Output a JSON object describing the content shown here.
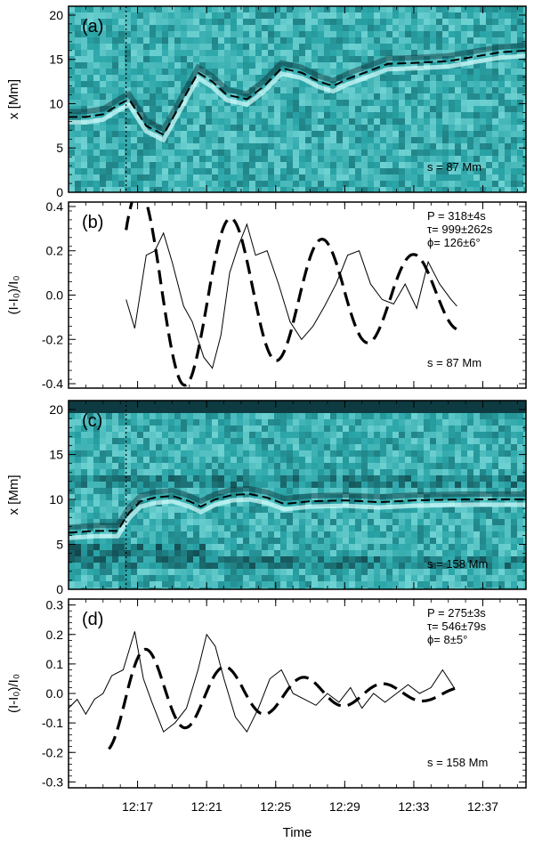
{
  "figure": {
    "xlabel": "Time",
    "xticks": [
      "12:17",
      "12:21",
      "12:25",
      "12:29",
      "12:33",
      "12:37"
    ]
  },
  "chart_data": [
    {
      "type": "heatmap",
      "panel_label": "(a)",
      "ylabel": "x [Mm]",
      "yticks": [
        "0",
        "5",
        "10",
        "15",
        "20"
      ],
      "ylim": [
        0,
        21
      ],
      "annotation": "s = 87 Mm",
      "colormap": [
        "#0a2f35",
        "#2aa5a8",
        "#9ef0ef"
      ],
      "vline_time": "12:16:20",
      "tracked_path": {
        "t": [
          "12:13:00",
          "12:14:00",
          "12:15:00",
          "12:16:00",
          "12:16:30",
          "12:17:30",
          "12:18:30",
          "12:19:30",
          "12:20:30",
          "12:21:20",
          "12:22:10",
          "12:23:20",
          "12:24:20",
          "12:25:20",
          "12:26:30",
          "12:27:30",
          "12:28:20",
          "12:29:10",
          "12:30:10",
          "12:31:30",
          "12:33:00",
          "12:35:00",
          "12:36:30",
          "12:38:00",
          "12:39:30"
        ],
        "x": [
          8.5,
          8.5,
          8.8,
          10,
          10.5,
          7.5,
          6.5,
          10,
          13.5,
          12.5,
          11,
          10.5,
          12,
          14,
          13.5,
          12.5,
          12,
          12.8,
          13.5,
          14.5,
          14.6,
          14.8,
          15.3,
          15.8,
          16
        ]
      }
    },
    {
      "type": "line",
      "panel_label": "(b)",
      "ylabel": "(I-I₀)/I₀",
      "yticks": [
        "-0.4",
        "-0.2",
        "0.0",
        "0.2",
        "0.4"
      ],
      "ylim": [
        -0.42,
        0.42
      ],
      "annotation": "s = 87 Mm",
      "fit_params": [
        "P = 318±4s",
        "τ= 999±262s",
        "ϕ= 126±6°"
      ],
      "fit": {
        "t_start": "12:16:20",
        "t_end": "12:35:30",
        "period_s": 318,
        "damping_s": 999,
        "phase_deg": 126,
        "amplitude": 0.5
      },
      "series": [
        {
          "t": [
            "12:16:20",
            "12:16:50",
            "12:17:30",
            "12:18:00",
            "12:18:30",
            "12:19:00",
            "12:19:40",
            "12:20:10",
            "12:20:50",
            "12:21:20",
            "12:21:50",
            "12:22:20",
            "12:22:50",
            "12:23:20",
            "12:23:50",
            "12:24:30",
            "12:25:10",
            "12:25:50",
            "12:26:30",
            "12:27:10",
            "12:27:50",
            "12:28:30",
            "12:29:10",
            "12:29:50",
            "12:30:30",
            "12:31:10",
            "12:31:50",
            "12:32:30",
            "12:33:10",
            "12:33:50",
            "12:34:30",
            "12:35:10",
            "12:35:30"
          ],
          "values": [
            -0.02,
            -0.15,
            0.18,
            0.2,
            0.28,
            0.15,
            -0.05,
            -0.12,
            -0.28,
            -0.33,
            -0.18,
            0.1,
            0.22,
            0.32,
            0.18,
            0.2,
            0.05,
            -0.12,
            -0.2,
            -0.14,
            -0.05,
            0.05,
            0.18,
            0.2,
            0.05,
            -0.02,
            -0.04,
            0.05,
            -0.06,
            0.15,
            0.05,
            -0.02,
            -0.05
          ]
        }
      ]
    },
    {
      "type": "heatmap",
      "panel_label": "(c)",
      "ylabel": "x [Mm]",
      "yticks": [
        "0",
        "5",
        "10",
        "15",
        "20"
      ],
      "ylim": [
        0,
        21
      ],
      "annotation": "s = 158 Mm",
      "colormap": [
        "#0a2f35",
        "#2aa5a8",
        "#9ef0ef"
      ],
      "vline_time": "12:16:20",
      "tracked_path": {
        "t": [
          "12:13:00",
          "12:14:30",
          "12:15:50",
          "12:16:30",
          "12:17:10",
          "12:18:00",
          "12:19:00",
          "12:20:00",
          "12:20:40",
          "12:21:30",
          "12:22:30",
          "12:23:30",
          "12:24:30",
          "12:25:30",
          "12:27:00",
          "12:29:00",
          "12:31:00",
          "12:33:00",
          "12:36:00",
          "12:39:30"
        ],
        "x": [
          6.3,
          6.5,
          6.5,
          8.5,
          9.8,
          10.2,
          10.4,
          9.8,
          9.2,
          10,
          10.5,
          10.6,
          10.2,
          9.5,
          9.8,
          9.9,
          9.7,
          9.9,
          10,
          10
        ]
      }
    },
    {
      "type": "line",
      "panel_label": "(d)",
      "ylabel": "(I-I₀)/I₀",
      "yticks": [
        "-0.3",
        "-0.2",
        "-0.1",
        "0.0",
        "0.1",
        "0.2",
        "0.3"
      ],
      "ylim": [
        -0.32,
        0.32
      ],
      "annotation": "s = 158 Mm",
      "fit_params": [
        "P = 275±3s",
        "τ= 546±79s",
        "ϕ= 8±5°"
      ],
      "fit": {
        "t_start": "12:15:20",
        "t_end": "12:35:30",
        "period_s": 275,
        "damping_s": 546,
        "phase_deg": 8,
        "amplitude": 0.19
      },
      "series": [
        {
          "t": [
            "12:13:00",
            "12:13:30",
            "12:14:00",
            "12:14:30",
            "12:15:00",
            "12:15:30",
            "12:16:10",
            "12:16:50",
            "12:17:20",
            "12:17:50",
            "12:18:30",
            "12:19:10",
            "12:19:50",
            "12:20:30",
            "12:21:00",
            "12:21:30",
            "12:22:00",
            "12:22:40",
            "12:23:20",
            "12:24:00",
            "12:24:40",
            "12:25:20",
            "12:26:00",
            "12:26:40",
            "12:27:20",
            "12:28:00",
            "12:28:40",
            "12:29:20",
            "12:30:00",
            "12:30:40",
            "12:31:20",
            "12:32:00",
            "12:32:40",
            "12:33:20",
            "12:34:00",
            "12:34:40",
            "12:35:20"
          ],
          "values": [
            -0.05,
            -0.02,
            -0.07,
            -0.02,
            0.0,
            0.06,
            0.08,
            0.21,
            0.05,
            -0.03,
            -0.13,
            -0.1,
            -0.05,
            0.08,
            0.2,
            0.16,
            0.05,
            -0.08,
            -0.13,
            -0.05,
            0.05,
            0.08,
            0.0,
            -0.02,
            -0.04,
            0.0,
            -0.03,
            0.02,
            -0.05,
            0.0,
            -0.03,
            0.0,
            0.03,
            0.0,
            0.02,
            0.08,
            0.02
          ]
        }
      ]
    }
  ]
}
